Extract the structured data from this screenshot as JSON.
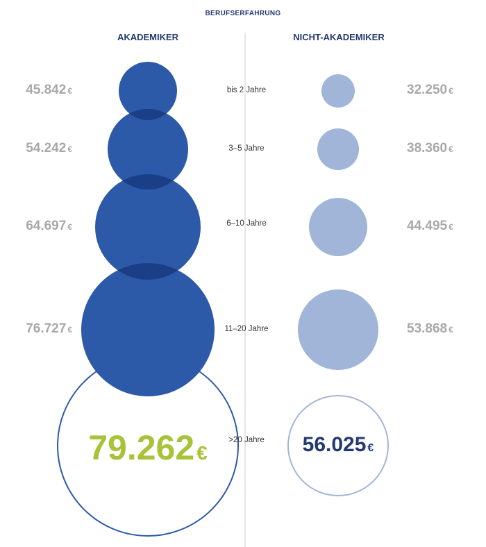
{
  "chart_data": {
    "type": "bubble",
    "axis_title": "BERUFSERFAHRUNG",
    "currency": "€",
    "categories": [
      "bis 2 Jahre",
      "3–5 Jahre",
      "6–10 Jahre",
      "11–20 Jahre",
      ">20 Jahre"
    ],
    "series": [
      {
        "name": "AKADEMIKER",
        "values": [
          45842,
          54242,
          64697,
          76727,
          79262
        ],
        "labels": [
          "45.842",
          "54.242",
          "64.697",
          "76.727",
          "79.262"
        ]
      },
      {
        "name": "NICHT-AKADEMIKER",
        "values": [
          32250,
          38360,
          44495,
          53868,
          56025
        ],
        "labels": [
          "32.250",
          "38.360",
          "44.495",
          "53.868",
          "56.025"
        ]
      }
    ],
    "colors": {
      "akademiker_fill": "#2c5aa8",
      "akademiker_overlap": "#1b3f86",
      "nicht_fill": "#a1b5d9",
      "outline_left": "#2c5aa8",
      "outline_right": "#a1b5d9",
      "highlight_value": "#a9c23a",
      "dark_value": "#233a70",
      "grey_value": "#a8a8a8",
      "divider": "#cfcfcf"
    }
  }
}
